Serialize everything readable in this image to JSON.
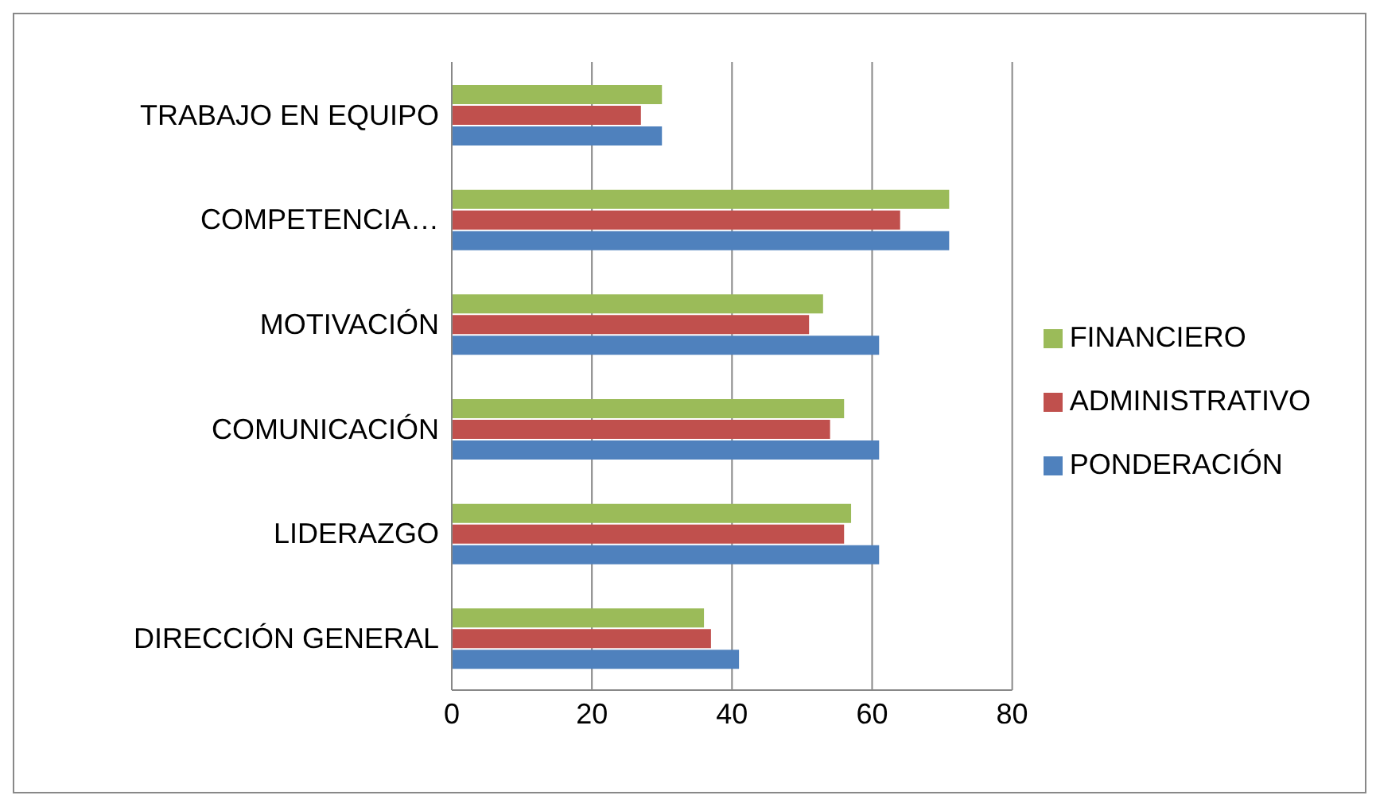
{
  "chart_data": {
    "type": "bar",
    "orientation": "horizontal",
    "categories": [
      "TRABAJO EN EQUIPO",
      "COMPETENCIA…",
      "MOTIVACIÓN",
      "COMUNICACIÓN",
      "LIDERAZGO",
      "DIRECCIÓN GENERAL"
    ],
    "series": [
      {
        "name": "FINANCIERO",
        "color": "#9bbb59",
        "values": [
          30,
          71,
          53,
          56,
          57,
          36
        ]
      },
      {
        "name": "ADMINISTRATIVO",
        "color": "#c0504d",
        "values": [
          27,
          64,
          51,
          54,
          56,
          37
        ]
      },
      {
        "name": "PONDERACIÓN",
        "color": "#4f81bd",
        "values": [
          30,
          71,
          61,
          61,
          61,
          41
        ]
      }
    ],
    "xlim": [
      0,
      80
    ],
    "xticks": [
      0,
      20,
      40,
      60,
      80
    ],
    "grid": "x",
    "legend": "right"
  }
}
